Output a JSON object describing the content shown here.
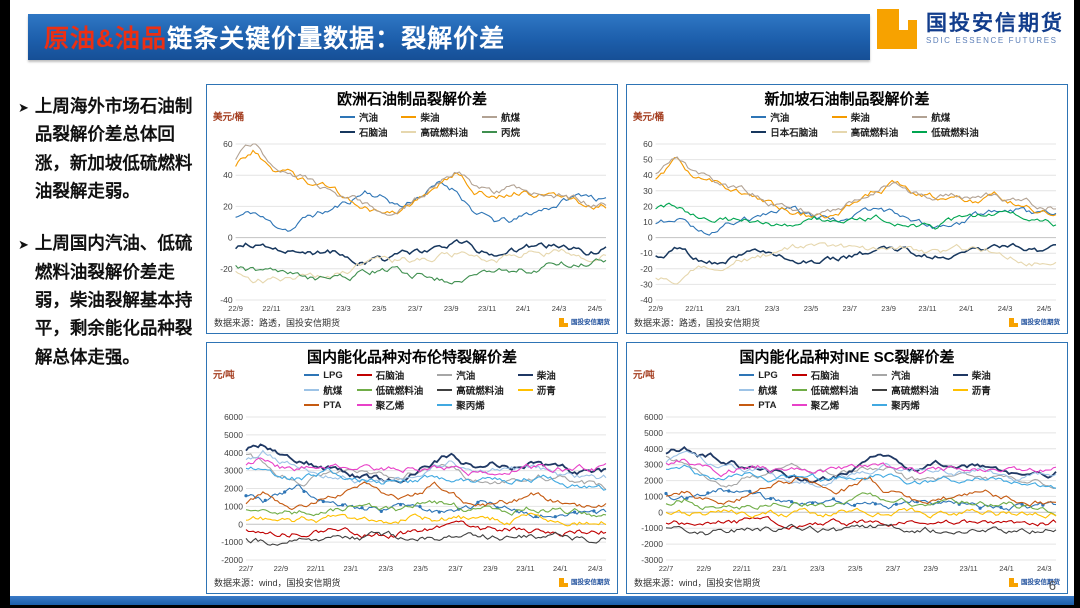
{
  "slide": {
    "header": {
      "title_highlight": "原油&油品",
      "title_rest": "链条关键价量数据：裂解价差"
    },
    "logo": {
      "name_cn": "国投安信期货",
      "name_en": "SDIC ESSENCE FUTURES"
    },
    "bullet_marker": "➤",
    "bullets": [
      "上周海外市场石油制品裂解价差总体回涨，新加坡低硫燃料油裂解走弱。",
      "上周国内汽油、低硫燃料油裂解价差走弱，柴油裂解基本持平，剩余能化品种裂解总体走强。"
    ],
    "panel_logo_text": "国投安信期货",
    "page_number": "6",
    "colors": {
      "header_blue": "#1D5FAC",
      "accent_red": "#ED2F12",
      "logo_orange": "#F7A200",
      "panel_border": "#2E74B5"
    }
  },
  "chart_data": [
    {
      "type": "line",
      "title": "欧洲石油制品裂解价差",
      "ylabel": "美元/桶",
      "xlabel": "",
      "source": "数据来源：路透，国投安信期货",
      "ylim": [
        -40,
        60
      ],
      "yticks": [
        60,
        40,
        20,
        0,
        -20,
        -40
      ],
      "xticklabels": [
        "22/9",
        "22/11",
        "23/1",
        "23/3",
        "23/5",
        "23/7",
        "23/9",
        "23/11",
        "24/1",
        "24/3",
        "24/5"
      ],
      "grid": true,
      "legend_position": "top",
      "series": [
        {
          "name": "汽油",
          "color": "#2E75B6",
          "values": [
            13,
            16,
            8,
            6,
            14,
            17,
            22,
            30,
            26,
            20,
            28,
            34,
            30,
            16,
            10,
            10,
            15,
            20,
            25,
            28,
            24
          ]
        },
        {
          "name": "柴油",
          "color": "#F59B00",
          "values": [
            46,
            56,
            42,
            40,
            34,
            30,
            24,
            19,
            15,
            18,
            26,
            34,
            40,
            30,
            27,
            30,
            28,
            30,
            25,
            20,
            21
          ]
        },
        {
          "name": "航煤",
          "color": "#B2A293",
          "values": [
            50,
            60,
            46,
            42,
            36,
            32,
            26,
            21,
            17,
            20,
            28,
            36,
            42,
            32,
            30,
            32,
            30,
            32,
            27,
            22,
            22
          ]
        },
        {
          "name": "石脑油",
          "color": "#17375E",
          "width": 1.5,
          "values": [
            -6,
            -4,
            -9,
            -11,
            -10,
            -9,
            -11,
            -13,
            -15,
            -13,
            -10,
            -7,
            -5,
            -8,
            -10,
            -9,
            -7,
            -5,
            -6,
            -8,
            -7
          ]
        },
        {
          "name": "高硫燃料油",
          "color": "#E6D7AE",
          "values": [
            -22,
            -26,
            -28,
            -26,
            -24,
            -22,
            -20,
            -18,
            -16,
            -15,
            -14,
            -12,
            -10,
            -12,
            -14,
            -12,
            -10,
            -9,
            -10,
            -12,
            -11
          ]
        },
        {
          "name": "丙烷",
          "color": "#3F8F4F",
          "values": [
            -17,
            -20,
            -24,
            -26,
            -28,
            -26,
            -24,
            -22,
            -20,
            -22,
            -24,
            -26,
            -28,
            -26,
            -24,
            -22,
            -20,
            -18,
            -17,
            -16,
            -15
          ]
        }
      ]
    },
    {
      "type": "line",
      "title": "新加坡石油制品裂解价差",
      "ylabel": "美元/桶",
      "xlabel": "",
      "source": "数据来源：路透，国投安信期货",
      "ylim": [
        -40,
        60
      ],
      "yticks": [
        60,
        50,
        40,
        30,
        20,
        10,
        0,
        -10,
        -20,
        -30,
        -40
      ],
      "xticklabels": [
        "22/9",
        "22/11",
        "23/1",
        "23/3",
        "23/5",
        "23/7",
        "23/9",
        "23/11",
        "24/1",
        "24/3",
        "24/5"
      ],
      "grid": true,
      "legend_position": "top",
      "series": [
        {
          "name": "汽油",
          "color": "#2E75B6",
          "values": [
            8,
            11,
            6,
            4,
            10,
            12,
            15,
            17,
            12,
            10,
            14,
            18,
            16,
            8,
            6,
            8,
            12,
            15,
            17,
            14,
            12
          ]
        },
        {
          "name": "柴油",
          "color": "#F59B00",
          "values": [
            38,
            48,
            36,
            33,
            28,
            25,
            20,
            16,
            13,
            15,
            22,
            30,
            34,
            26,
            24,
            26,
            24,
            26,
            22,
            18,
            18
          ]
        },
        {
          "name": "航煤",
          "color": "#B2A293",
          "values": [
            42,
            52,
            40,
            36,
            30,
            27,
            22,
            18,
            15,
            17,
            24,
            32,
            36,
            28,
            26,
            28,
            26,
            28,
            24,
            20,
            20
          ]
        },
        {
          "name": "日本石脑油",
          "color": "#17375E",
          "width": 1.5,
          "values": [
            -10,
            -8,
            -13,
            -15,
            -12,
            -10,
            -12,
            -14,
            -16,
            -14,
            -12,
            -10,
            -8,
            -10,
            -12,
            -10,
            -8,
            -6,
            -7,
            -9,
            -8
          ]
        },
        {
          "name": "高硫燃料油",
          "color": "#E6D7AE",
          "values": [
            -26,
            -29,
            -22,
            -18,
            -14,
            -12,
            -10,
            -8,
            -6,
            -8,
            -10,
            -8,
            -6,
            -8,
            -10,
            -9,
            -8,
            -10,
            -12,
            -14,
            -13
          ]
        },
        {
          "name": "低硫燃料油",
          "color": "#00A550",
          "values": [
            20,
            23,
            16,
            12,
            10,
            9,
            8,
            10,
            12,
            10,
            12,
            14,
            12,
            10,
            9,
            11,
            13,
            14,
            12,
            10,
            8
          ]
        }
      ]
    },
    {
      "type": "line",
      "title": "国内能化品种对布伦特裂解价差",
      "ylabel": "元/吨",
      "xlabel": "",
      "source": "数据来源：wind，国投安信期货",
      "ylim": [
        -2000,
        6000
      ],
      "yticks": [
        6000,
        5000,
        4000,
        3000,
        2000,
        1000,
        0,
        -1000,
        -2000
      ],
      "xticklabels": [
        "22/7",
        "22/9",
        "22/11",
        "23/1",
        "23/3",
        "23/5",
        "23/7",
        "23/9",
        "23/11",
        "24/1",
        "24/3"
      ],
      "grid": true,
      "legend_position": "top",
      "series": [
        {
          "name": "LPG",
          "color": "#2E75B6",
          "markers": true,
          "values": [
            1500,
            1250,
            1550,
            1850,
            1500,
            1200,
            1000,
            820,
            920,
            1120,
            900,
            720,
            620,
            820,
            1020,
            900,
            720,
            600,
            520,
            620,
            720,
            640
          ]
        },
        {
          "name": "石脑油",
          "color": "#C00000",
          "values": [
            -280,
            -400,
            -520,
            -400,
            -300,
            -360,
            -420,
            -520,
            -600,
            -500,
            -400,
            -300,
            -360,
            -420,
            -460,
            -400,
            -300,
            -260,
            -300,
            -360,
            -400,
            -340
          ]
        },
        {
          "name": "汽油",
          "color": "#A6A6A6",
          "values": [
            3800,
            3400,
            2800,
            2400,
            2600,
            2800,
            3050,
            3200,
            2800,
            2600,
            3000,
            3400,
            3200,
            2600,
            2250,
            2400,
            2600,
            2800,
            2600,
            2400,
            2200,
            2000
          ]
        },
        {
          "name": "柴油",
          "color": "#1F3864",
          "width": 1.8,
          "values": [
            4200,
            4600,
            4000,
            3800,
            3400,
            3150,
            2800,
            2600,
            2450,
            2600,
            3000,
            3600,
            4000,
            3400,
            3200,
            3400,
            3200,
            3300,
            3000,
            2850,
            2900,
            2900
          ]
        },
        {
          "name": "航煤",
          "color": "#9DC3E6",
          "values": [
            3600,
            4000,
            3600,
            3400,
            3000,
            2800,
            2500,
            2300,
            2200,
            2400,
            2800,
            3200,
            3600,
            3000,
            2900,
            3000,
            2900,
            3000,
            2700,
            2600,
            2600,
            2600
          ]
        },
        {
          "name": "低硫燃料油",
          "color": "#70AD47",
          "values": [
            900,
            1100,
            800,
            620,
            720,
            820,
            920,
            1000,
            820,
            720,
            920,
            1100,
            1000,
            820,
            720,
            820,
            920,
            1000,
            900,
            720,
            620,
            520
          ]
        },
        {
          "name": "高硫燃料油",
          "color": "#404040",
          "values": [
            -800,
            -950,
            -1100,
            -1000,
            -900,
            -850,
            -800,
            -760,
            -700,
            -800,
            -900,
            -800,
            -700,
            -760,
            -800,
            -780,
            -700,
            -660,
            -700,
            -760,
            -800,
            -780
          ]
        },
        {
          "name": "沥青",
          "color": "#FFC000",
          "values": [
            350,
            220,
            120,
            220,
            320,
            360,
            300,
            260,
            200,
            300,
            400,
            350,
            300,
            260,
            200,
            260,
            320,
            360,
            300,
            260,
            210,
            190
          ]
        },
        {
          "name": "PTA",
          "color": "#C55A11",
          "values": [
            1200,
            1550,
            1000,
            800,
            1250,
            1650,
            2050,
            2400,
            1800,
            1400,
            1800,
            2200,
            1600,
            1200,
            1000,
            1200,
            1400,
            1650,
            1300,
            1100,
            1000,
            950
          ]
        },
        {
          "name": "聚乙烯",
          "color": "#E841C8",
          "values": [
            3400,
            3650,
            3200,
            3000,
            3200,
            3300,
            3100,
            3000,
            2900,
            3000,
            3200,
            3300,
            3200,
            3000,
            2900,
            3000,
            3100,
            3200,
            3100,
            3000,
            3100,
            3250
          ]
        },
        {
          "name": "聚丙烯",
          "color": "#41A9E1",
          "values": [
            3000,
            3250,
            2800,
            2600,
            2700,
            2800,
            2600,
            2500,
            2400,
            2500,
            2600,
            2700,
            2600,
            2400,
            2300,
            2400,
            2500,
            2600,
            2500,
            2300,
            2200,
            2100
          ]
        }
      ]
    },
    {
      "type": "line",
      "title": "国内能化品种对INE SC裂解价差",
      "ylabel": "元/吨",
      "xlabel": "",
      "source": "数据来源：wind，国投安信期货",
      "ylim": [
        -3000,
        6000
      ],
      "yticks": [
        6000,
        5000,
        4000,
        3000,
        2000,
        1000,
        0,
        -1000,
        -2000,
        -3000
      ],
      "xticklabels": [
        "22/7",
        "22/9",
        "22/11",
        "23/1",
        "23/3",
        "23/5",
        "23/7",
        "23/9",
        "23/11",
        "24/1",
        "24/3"
      ],
      "grid": true,
      "legend_position": "top",
      "series": [
        {
          "name": "LPG",
          "color": "#2E75B6",
          "markers": true,
          "values": [
            1100,
            900,
            1200,
            1500,
            1150,
            900,
            700,
            520,
            620,
            820,
            600,
            420,
            320,
            520,
            720,
            600,
            420,
            300,
            220,
            320,
            420,
            380
          ]
        },
        {
          "name": "石脑油",
          "color": "#C00000",
          "values": [
            -600,
            -750,
            -850,
            -700,
            -600,
            -660,
            -720,
            -820,
            -900,
            -800,
            -700,
            -600,
            -660,
            -720,
            -760,
            -700,
            -600,
            -560,
            -600,
            -660,
            -700,
            -640
          ]
        },
        {
          "name": "汽油",
          "color": "#A6A6A6",
          "values": [
            3400,
            3000,
            2400,
            2000,
            2200,
            2400,
            2650,
            2800,
            2400,
            2200,
            2600,
            3000,
            2800,
            2200,
            1850,
            2000,
            2200,
            2400,
            2200,
            2000,
            1800,
            1600
          ]
        },
        {
          "name": "柴油",
          "color": "#1F3864",
          "width": 1.8,
          "values": [
            3800,
            4200,
            3600,
            3400,
            3000,
            2750,
            2400,
            2200,
            2050,
            2200,
            2600,
            3200,
            3600,
            3000,
            2800,
            3000,
            2800,
            2900,
            2600,
            2450,
            2500,
            2550
          ]
        },
        {
          "name": "航煤",
          "color": "#9DC3E6",
          "values": [
            3200,
            3600,
            3200,
            3000,
            2600,
            2400,
            2100,
            1900,
            1800,
            2000,
            2400,
            2800,
            3200,
            2600,
            2500,
            2600,
            2500,
            2600,
            2300,
            2200,
            2200,
            2250
          ]
        },
        {
          "name": "低硫燃料油",
          "color": "#70AD47",
          "values": [
            600,
            800,
            500,
            320,
            420,
            520,
            620,
            700,
            520,
            420,
            620,
            800,
            700,
            520,
            420,
            520,
            620,
            700,
            600,
            420,
            320,
            220
          ]
        },
        {
          "name": "高硫燃料油",
          "color": "#404040",
          "values": [
            -1100,
            -1250,
            -1400,
            -1300,
            -1200,
            -1150,
            -1100,
            -1060,
            -1000,
            -1100,
            -1200,
            -1100,
            -1000,
            -1060,
            -1100,
            -1080,
            -1000,
            -960,
            -1000,
            -1060,
            -1100,
            -1080
          ]
        },
        {
          "name": "沥青",
          "color": "#FFC000",
          "values": [
            50,
            -80,
            -180,
            -80,
            20,
            60,
            0,
            -40,
            -100,
            0,
            100,
            50,
            0,
            -40,
            -100,
            -40,
            20,
            60,
            0,
            -40,
            -90,
            -110
          ]
        },
        {
          "name": "PTA",
          "color": "#C55A11",
          "values": [
            900,
            1250,
            700,
            500,
            950,
            1350,
            1750,
            2100,
            1500,
            1100,
            1500,
            1900,
            1300,
            900,
            700,
            900,
            1100,
            1350,
            1000,
            800,
            700,
            650
          ]
        },
        {
          "name": "聚乙烯",
          "color": "#E841C8",
          "values": [
            3000,
            3250,
            2800,
            2600,
            2800,
            2900,
            2700,
            2600,
            2500,
            2600,
            2800,
            2900,
            2800,
            2600,
            2500,
            2600,
            2700,
            2800,
            2700,
            2600,
            2700,
            2850
          ]
        },
        {
          "name": "聚丙烯",
          "color": "#41A9E1",
          "values": [
            2600,
            2850,
            2400,
            2200,
            2300,
            2400,
            2200,
            2100,
            2000,
            2100,
            2200,
            2300,
            2200,
            2000,
            1900,
            2000,
            2100,
            2200,
            2100,
            1900,
            1800,
            1700
          ]
        }
      ]
    }
  ]
}
